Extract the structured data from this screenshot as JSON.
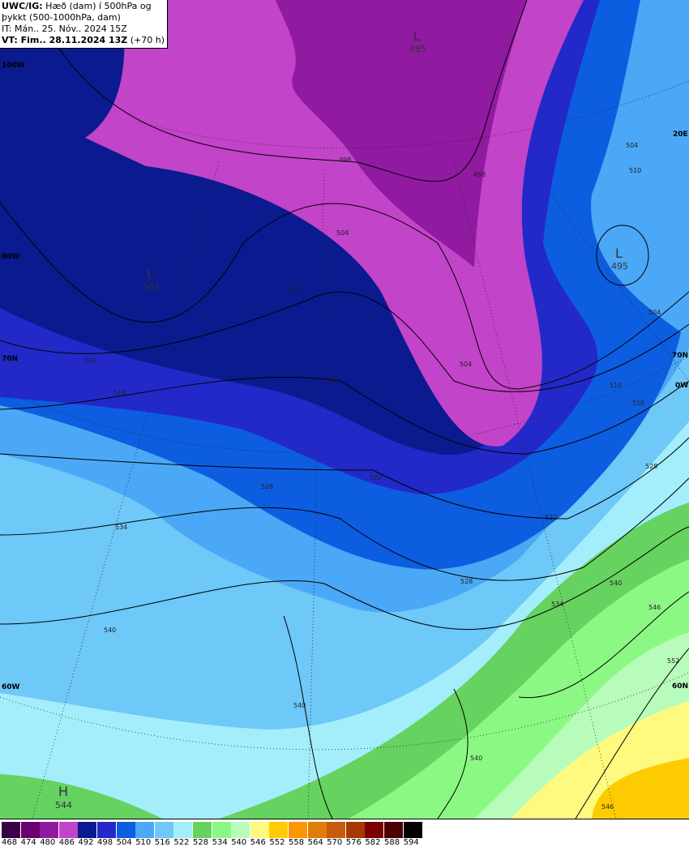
{
  "header": {
    "line1_bold": "UWC/IG:",
    "line1": " Hæð (dam) í 500hPa og",
    "line2": "þykkt (500-1000hPa, dam)",
    "line3": "IT: Mán.. 25. Nóv.. 2024 15Z",
    "line4_bold": "VT: Fim.. 28.11.2024 13Z",
    "line4": " (+70 h)"
  },
  "graticule_labels": [
    "100W",
    "80W",
    "70N",
    "60W",
    "20E",
    "70N",
    "0W",
    "60N"
  ],
  "systems": [
    {
      "type": "L",
      "value": "495"
    },
    {
      "type": "L",
      "value": "502"
    },
    {
      "type": "L",
      "value": "495"
    },
    {
      "type": "H",
      "value": "544"
    }
  ],
  "contour_labels": [
    "498",
    "504",
    "510",
    "510",
    "516",
    "516",
    "522",
    "528",
    "528",
    "534",
    "540",
    "540",
    "534",
    "540",
    "546",
    "552",
    "546",
    "540",
    "504",
    "510",
    "504",
    "510",
    "516",
    "528",
    "522",
    "498",
    "504"
  ],
  "colorbar": {
    "ticks": [
      "468",
      "474",
      "480",
      "486",
      "492",
      "498",
      "504",
      "510",
      "516",
      "522",
      "528",
      "534",
      "540",
      "546",
      "552",
      "558",
      "564",
      "570",
      "576",
      "582",
      "588",
      "594"
    ],
    "colors": [
      "#3a0045",
      "#6a0070",
      "#901aa0",
      "#c244c8",
      "#0b1a8f",
      "#2229c8",
      "#0d5de0",
      "#4aa8f6",
      "#6ec8f8",
      "#a4eefc",
      "#66d260",
      "#8cf884",
      "#b8fcbc",
      "#fefa80",
      "#fecb00",
      "#fc9600",
      "#e07c08",
      "#c85a0c",
      "#a43a00",
      "#7a0000",
      "#4e0000",
      "#000000"
    ]
  }
}
